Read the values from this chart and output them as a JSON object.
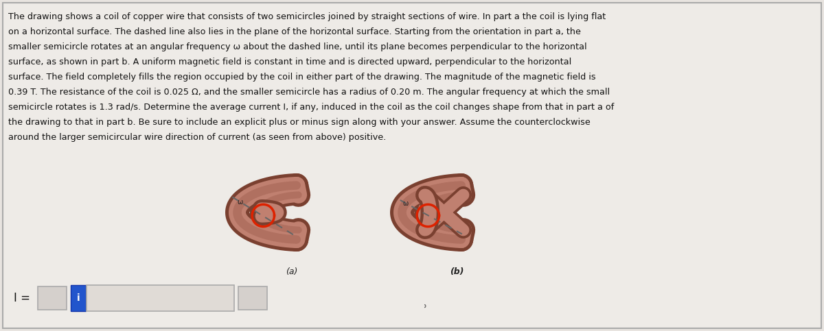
{
  "bg_color": "#e8e4e0",
  "white_bg": "#f5f3f0",
  "text_lines": [
    "The drawing shows a coil of copper wire that consists of two semicircles joined by straight sections of wire. In part a the coil is lying flat",
    "on a horizontal surface. The dashed line also lies in the plane of the horizontal surface. Starting from the orientation in part a, the",
    "smaller semicircle rotates at an angular frequency ω about the dashed line, until its plane becomes perpendicular to the horizontal",
    "surface, as shown in part b. A uniform magnetic field is constant in time and is directed upward, perpendicular to the horizontal",
    "surface. The field completely fills the region occupied by the coil in either part of the drawing. The magnitude of the magnetic field is",
    "0.39 T. The resistance of the coil is 0.025 Ω, and the smaller semicircle has a radius of 0.20 m. The angular frequency at which the small",
    "semicircle rotates is 1.3 rad/s. Determine the average current I, if any, induced in the coil as the coil changes shape from that in part a of",
    "the drawing to that in part b. Be sure to include an explicit plus or minus sign along with your answer. Assume the counterclockwise",
    "around the larger semicircular wire direction of current (as seen from above) positive."
  ],
  "label_a": "(a)",
  "label_b": "(b)",
  "eq_label": "I =",
  "wire_fill": "#c08070",
  "wire_stroke": "#7a4030",
  "wire_mid": "#b07060",
  "red_color": "#dd2200",
  "dash_color": "#666666",
  "text_color": "#111111",
  "text_fontsize": 9.2,
  "blue_color": "#2255cc",
  "border_color": "#999999",
  "spinner_color": "#d0ccc8",
  "input_bg": "#e4e0dc"
}
